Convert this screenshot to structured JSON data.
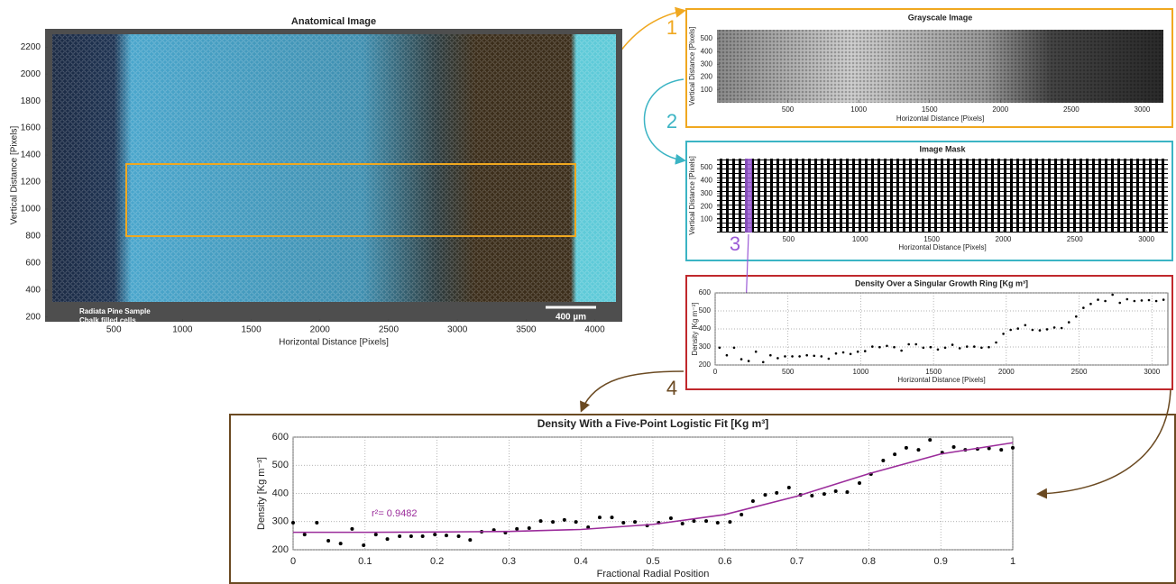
{
  "chart_data": [
    {
      "type": "image",
      "title": "Anatomical Image",
      "xlabel": "Horizontal Distance [Pixels]",
      "ylabel": "Vertical Distance [Pixels]",
      "xlim": [
        0,
        4200
      ],
      "ylim": [
        165,
        2335
      ],
      "xticks": [
        500,
        1000,
        1500,
        2000,
        2500,
        3000,
        3500,
        4000
      ],
      "yticks": [
        200,
        400,
        600,
        800,
        1000,
        1200,
        1400,
        1600,
        1800,
        2000,
        2200
      ],
      "annotations": [
        "Radiata Pine Sample",
        "Chalk filled cells",
        "400 µm"
      ]
    },
    {
      "type": "image",
      "title": "Grayscale Image",
      "xlabel": "Horizontal Distance [Pixels]",
      "ylabel": "Vertical Distance [Pixels]",
      "xlim": [
        0,
        3150
      ],
      "ylim": [
        0,
        570
      ],
      "xticks": [
        500,
        1000,
        1500,
        2000,
        2500,
        3000
      ],
      "yticks": [
        100,
        200,
        300,
        400,
        500
      ]
    },
    {
      "type": "image",
      "title": "Image Mask",
      "xlabel": "Horizontal Distance [Pixels]",
      "ylabel": "Vertical Distance [Pixels]",
      "xlim": [
        0,
        3150
      ],
      "ylim": [
        0,
        570
      ],
      "xticks": [
        500,
        1000,
        1500,
        2000,
        2500,
        3000
      ],
      "yticks": [
        100,
        200,
        300,
        400,
        500
      ]
    },
    {
      "type": "scatter",
      "title": "Density Over a Singular Growth Ring [Kg m³]",
      "xlabel": "Horizontal Distance [Pixels]",
      "ylabel": "Density [Kg m⁻³]",
      "xlim": [
        0,
        3110
      ],
      "ylim": [
        200,
        600
      ],
      "xticks": [
        0,
        500,
        1000,
        1500,
        2000,
        2500,
        3000
      ],
      "yticks": [
        200,
        300,
        400,
        500,
        600
      ],
      "grid": true,
      "series": [
        {
          "marker": "dot",
          "color": "#000000",
          "x": [
            30,
            80,
            130,
            180,
            230,
            280,
            330,
            380,
            430,
            480,
            530,
            580,
            630,
            680,
            730,
            780,
            830,
            880,
            930,
            980,
            1030,
            1080,
            1130,
            1180,
            1230,
            1280,
            1330,
            1380,
            1430,
            1480,
            1530,
            1580,
            1630,
            1680,
            1730,
            1780,
            1830,
            1880,
            1930,
            1980,
            2030,
            2080,
            2130,
            2180,
            2230,
            2280,
            2330,
            2380,
            2430,
            2480,
            2530,
            2580,
            2630,
            2680,
            2730,
            2780,
            2830,
            2880,
            2930,
            2980,
            3030,
            3080
          ],
          "values": [
            296,
            254,
            296,
            232,
            222,
            274,
            216,
            254,
            238,
            248,
            248,
            248,
            254,
            251,
            248,
            235,
            264,
            270,
            261,
            274,
            277,
            302,
            299,
            306,
            299,
            280,
            315,
            315,
            296,
            299,
            286,
            296,
            312,
            293,
            302,
            302,
            296,
            299,
            325,
            373,
            395,
            402,
            421,
            395,
            392,
            398,
            408,
            405,
            437,
            469,
            517,
            539,
            562,
            555,
            590,
            545,
            565,
            555,
            558,
            560,
            555,
            562
          ]
        }
      ]
    },
    {
      "type": "scatter",
      "title": "Density With a Five-Point Logistic Fit [Kg m³]",
      "xlabel": "Fractional Radial Position",
      "ylabel": "Density [Kg m⁻³]",
      "xlim": [
        0,
        1
      ],
      "ylim": [
        200,
        600
      ],
      "xticks": [
        0,
        0.1,
        0.2,
        0.3,
        0.4,
        0.5,
        0.6,
        0.7,
        0.8,
        0.9,
        1
      ],
      "yticks": [
        200,
        300,
        400,
        500,
        600
      ],
      "grid": true,
      "annotations": [
        "r²= 0.9482"
      ],
      "series": [
        {
          "marker": "dot",
          "color": "#000000",
          "x": [
            0,
            0.016,
            0.033,
            0.049,
            0.066,
            0.082,
            0.098,
            0.115,
            0.131,
            0.148,
            0.164,
            0.18,
            0.197,
            0.213,
            0.23,
            0.246,
            0.262,
            0.279,
            0.295,
            0.311,
            0.328,
            0.344,
            0.361,
            0.377,
            0.393,
            0.41,
            0.426,
            0.443,
            0.459,
            0.475,
            0.492,
            0.508,
            0.525,
            0.541,
            0.557,
            0.574,
            0.59,
            0.607,
            0.623,
            0.639,
            0.656,
            0.672,
            0.689,
            0.705,
            0.721,
            0.738,
            0.754,
            0.77,
            0.787,
            0.803,
            0.82,
            0.836,
            0.852,
            0.869,
            0.885,
            0.902,
            0.918,
            0.934,
            0.951,
            0.967,
            0.984,
            1
          ],
          "values": [
            296,
            254,
            296,
            232,
            222,
            274,
            216,
            254,
            238,
            248,
            248,
            248,
            254,
            251,
            248,
            235,
            264,
            270,
            261,
            274,
            277,
            302,
            299,
            306,
            299,
            280,
            315,
            315,
            296,
            299,
            286,
            296,
            312,
            293,
            302,
            302,
            296,
            299,
            325,
            373,
            395,
            402,
            421,
            395,
            392,
            398,
            408,
            405,
            437,
            469,
            517,
            539,
            562,
            555,
            590,
            545,
            565,
            555,
            558,
            560,
            555,
            562
          ]
        },
        {
          "marker": "line",
          "color": "#9b2c9b",
          "x": [
            0,
            0.1,
            0.2,
            0.3,
            0.4,
            0.5,
            0.6,
            0.7,
            0.8,
            0.9,
            1
          ],
          "values": [
            262,
            262,
            263,
            265,
            272,
            290,
            325,
            390,
            470,
            540,
            580
          ]
        }
      ]
    }
  ],
  "step_labels": [
    "1",
    "2",
    "3",
    "4"
  ]
}
